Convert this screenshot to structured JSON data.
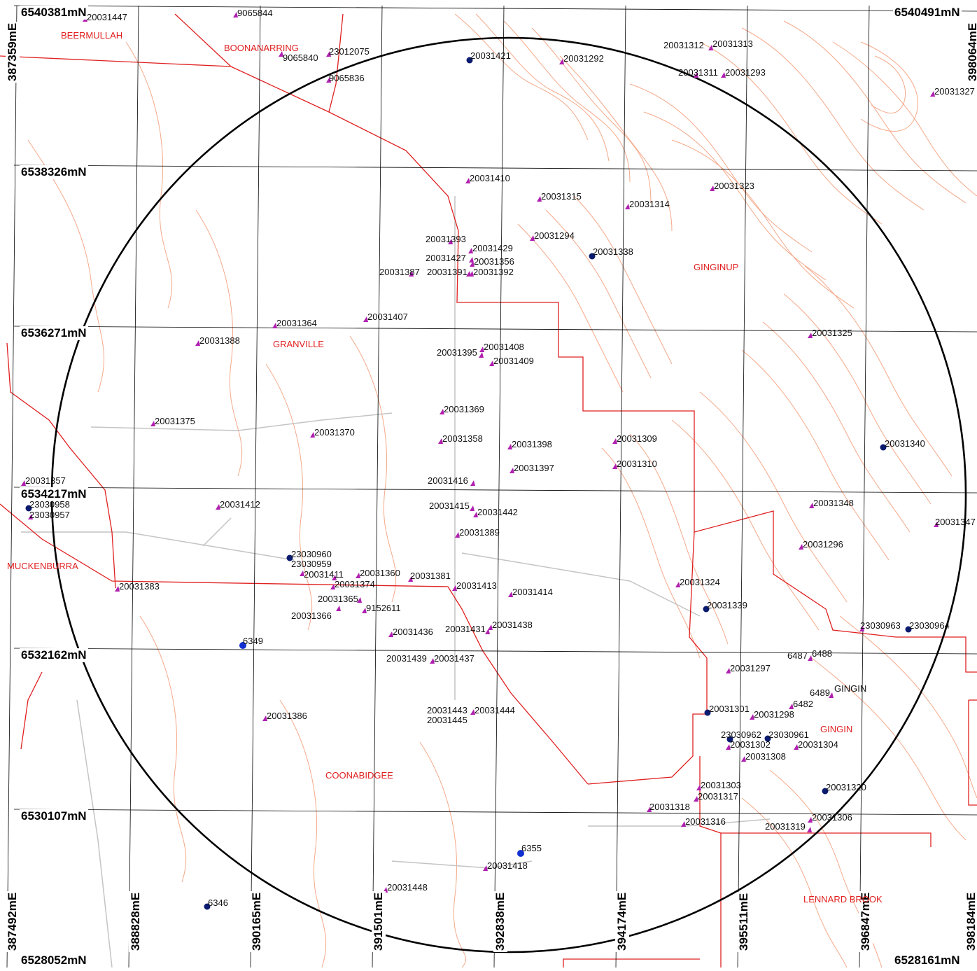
{
  "grid": {
    "northing_labels": [
      "6540381mN",
      "6540491mN",
      "6538326mN",
      "6536271mN",
      "6534217mN",
      "6532162mN",
      "6530107mN",
      "6528052mN",
      "6528161mN"
    ],
    "easting_labels": [
      "387359mE",
      "398064mE",
      "387492mE",
      "388828mE",
      "390165mE",
      "391501mE",
      "392838mE",
      "394174mE",
      "395511mE",
      "396847mE",
      "398184mE"
    ]
  },
  "places": [
    "BEERMULLAH",
    "BOONANARRING",
    "GINGINUP",
    "GRANVILLE",
    "MUCKENBURRA",
    "COONABIDGEE",
    "GINGIN",
    "LENNARD BROOK"
  ],
  "place_labels": {
    "ginginup": "GINGINUP",
    "granville": "GRANVILLE",
    "beermullah": "BEERMULLAH",
    "boonanarring": "BOONANARRING",
    "muckenburra": "MUCKENBURRA",
    "coonabidgee": "COONABIDGEE",
    "gingin": "GINGIN",
    "lennard_brook": "LENNARD BROOK"
  },
  "bores": {
    "b20031447": "20031447",
    "b9065844": "9065844",
    "b9065840": "9065840",
    "b23012075": "23012075",
    "b9065836": "9065836",
    "b20031421": "20031421",
    "b20031292": "20031292",
    "b20031312": "20031312",
    "b20031313": "20031313",
    "b20031311": "20031311",
    "b20031293": "20031293",
    "b20031327": "20031327",
    "b20031410": "20031410",
    "b20031315": "20031315",
    "b20031314": "20031314",
    "b20031323": "20031323",
    "b20031393": "20031393",
    "b20031429": "20031429",
    "b20031294": "20031294",
    "b20031427": "20031427",
    "b20031356": "20031356",
    "b20031338": "20031338",
    "b20031387": "20031387",
    "b20031391": "20031391",
    "b20031392": "20031392",
    "b20031364": "20031364",
    "b20031407": "20031407",
    "b20031388": "20031388",
    "b20031395": "20031395",
    "b20031408": "20031408",
    "b20031409": "20031409",
    "b20031325": "20031325",
    "b20031369": "20031369",
    "b20031375": "20031375",
    "b20031370": "20031370",
    "b20031358": "20031358",
    "b20031398": "20031398",
    "b20031309": "20031309",
    "b20031340": "20031340",
    "b20031397": "20031397",
    "b20031310": "20031310",
    "b20031357": "20031357",
    "b20031416": "20031416",
    "b23030958": "23030958",
    "b23030957": "23030957",
    "b20031412": "20031412",
    "b20031415": "20031415",
    "b20031442": "20031442",
    "b20031348": "20031348",
    "b20031347": "20031347",
    "b20031389": "20031389",
    "b20031296": "20031296",
    "b23030960": "23030960",
    "b23030959": "23030959",
    "b20031411": "20031411",
    "b20031360": "20031360",
    "b20031381": "20031381",
    "b20031374": "20031374",
    "b20031383": "20031383",
    "b20031413": "20031413",
    "b20031414": "20031414",
    "b20031324": "20031324",
    "b20031365": "20031365",
    "b9152611": "9152611",
    "b20031339": "20031339",
    "b20031366": "20031366",
    "b23030963": "23030963",
    "b23030964": "23030964",
    "b20031436": "20031436",
    "b20031431": "20031431",
    "b20031438": "20031438",
    "b6349": "6349",
    "b6487": "6487",
    "b6488": "6488",
    "b20031439": "20031439",
    "b20031437": "20031437",
    "b20031297": "20031297",
    "b6489": "6489",
    "b6482": "6482",
    "b20031301": "20031301",
    "b20031298": "20031298",
    "b20031386": "20031386",
    "b20031443": "20031443",
    "b20031444": "20031444",
    "b20031445": "20031445",
    "b23030962": "23030962",
    "b23030961": "23030961",
    "b20031302": "20031302",
    "b20031304": "20031304",
    "b20031308": "20031308",
    "b20031303": "20031303",
    "b20031317": "20031317",
    "b20031320": "20031320",
    "b20031318": "20031318",
    "b20031316": "20031316",
    "b20031319": "20031319",
    "b20031306": "20031306",
    "b6355": "6355",
    "b20031418": "20031418",
    "b20031448": "20031448",
    "b6346": "6346"
  },
  "colors": {
    "contour": "#f4a98a",
    "boundary": "#e02020",
    "road": "#bfbfbf",
    "bore_triangle": "#b01fb0",
    "bore_dot": "#0a1a6e",
    "grid": "#000000"
  }
}
